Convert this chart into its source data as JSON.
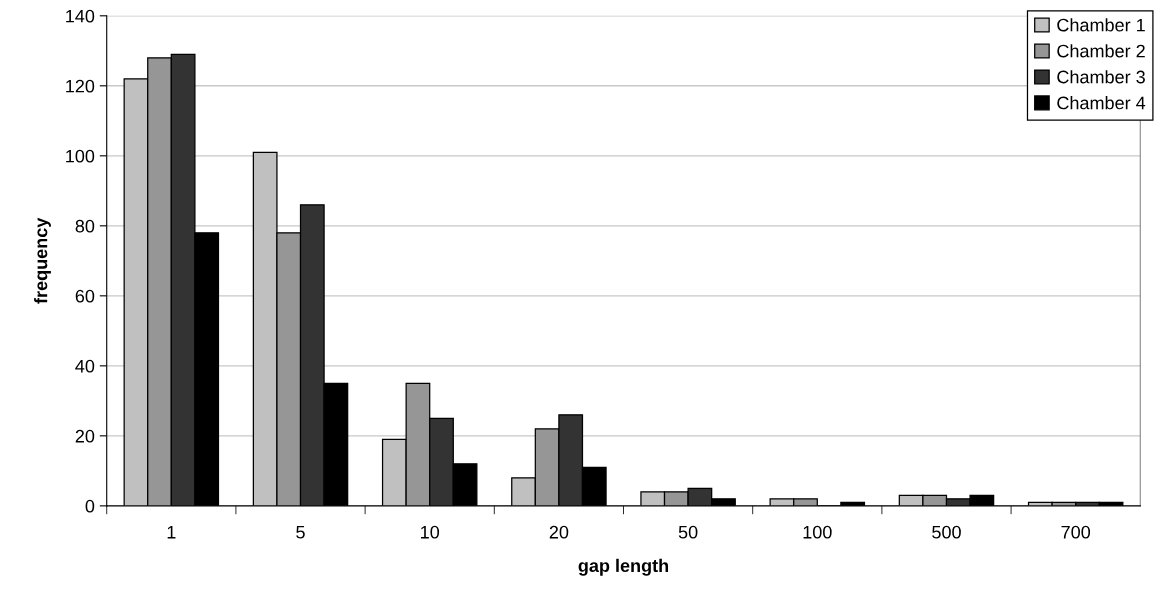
{
  "chart_data": {
    "type": "bar",
    "xlabel": "gap length",
    "ylabel": "frequency",
    "categories": [
      "1",
      "5",
      "10",
      "20",
      "50",
      "100",
      "500",
      "700"
    ],
    "series": [
      {
        "name": "Chamber 1",
        "color": "#c0c0c0",
        "values": [
          122,
          101,
          19,
          8,
          4,
          2,
          3,
          1
        ]
      },
      {
        "name": "Chamber 2",
        "color": "#969696",
        "values": [
          128,
          78,
          35,
          22,
          4,
          2,
          3,
          1
        ]
      },
      {
        "name": "Chamber 3",
        "color": "#333333",
        "values": [
          129,
          86,
          25,
          26,
          5,
          0,
          2,
          1
        ]
      },
      {
        "name": "Chamber 4",
        "color": "#000000",
        "values": [
          78,
          35,
          12,
          11,
          2,
          1,
          3,
          1
        ]
      }
    ],
    "ylim": [
      0,
      140
    ],
    "yticks": [
      0,
      20,
      40,
      60,
      80,
      100,
      120,
      140
    ],
    "grid": "y",
    "legend": "top right"
  }
}
